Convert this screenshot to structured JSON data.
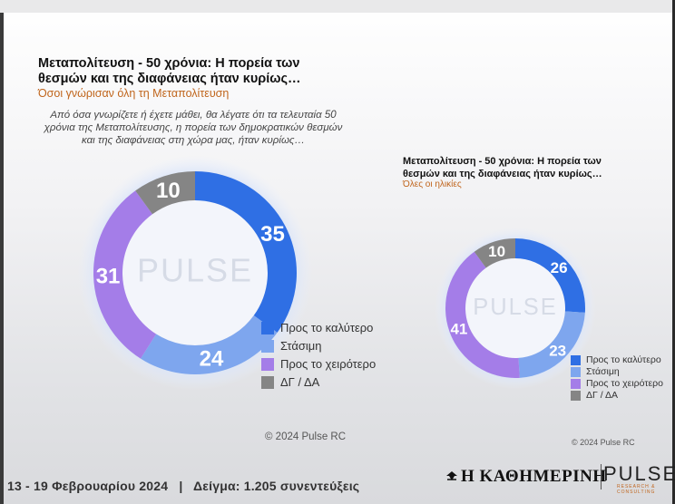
{
  "chart_data": [
    {
      "type": "pie",
      "title": "Μεταπολίτευση - 50 χρόνια: Η πορεία των θεσμών και της διαφάνειας ήταν κυρίως…",
      "subtitle": "Όσοι γνώρισαν όλη τη Μεταπολίτευση",
      "question": "Από όσα γνωρίζετε ή έχετε μάθει, θα λέγατε ότι τα τελευταία 50 χρόνια της Μεταπολίτευσης, η πορεία των δημοκρατικών θεσμών και της διαφάνειας στη χώρα μας, ήταν κυρίως…",
      "categories": [
        "Προς το καλύτερο",
        "Στάσιμη",
        "Προς το χειρότερο",
        "ΔΓ / ΔΑ"
      ],
      "values": [
        35,
        24,
        31,
        10
      ],
      "labels": [
        "35",
        "24",
        "31",
        "10"
      ],
      "copyright": "© 2024 Pulse RC"
    },
    {
      "type": "pie",
      "title": "Μεταπολίτευση - 50 χρόνια: Η πορεία των θεσμών και της διαφάνειας ήταν κυρίως…",
      "subtitle": "Όλες οι ηλικίες",
      "categories": [
        "Προς το καλύτερο",
        "Στάσιμη",
        "Προς το χειρότερο",
        "ΔΓ / ΔΑ"
      ],
      "values": [
        26,
        23,
        41,
        10
      ],
      "labels": [
        "26",
        "23",
        "41",
        "10"
      ],
      "copyright": "© 2024 Pulse RC"
    }
  ],
  "colors": [
    "#2f6fe4",
    "#7ea6ee",
    "#a47de8",
    "#858585"
  ],
  "watermark": "PULSE",
  "footer": {
    "dates": "13 - 19 Φεβρουαρίου 2024",
    "sep": "|",
    "sample": "Δείγμα: 1.205 συνεντεύξεις"
  },
  "brand": {
    "kathimerini": "Η ΚΑΘΗΜΕΡΙΝΗ",
    "pulse": "PULSE",
    "pulse_sub": "RESEARCH & CONSULTING"
  }
}
